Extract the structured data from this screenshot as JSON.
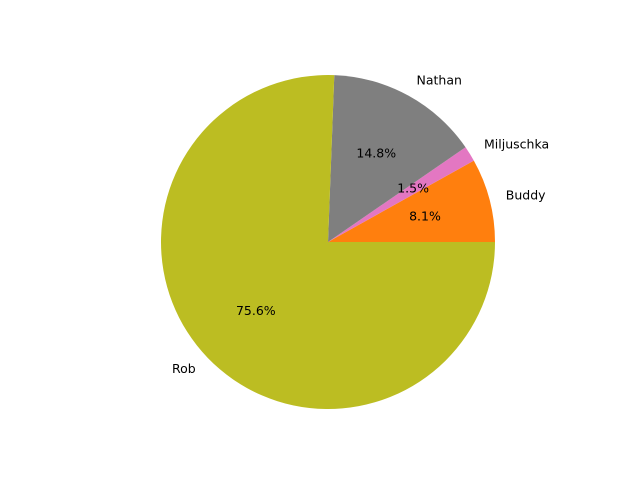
{
  "chart_data": {
    "type": "pie",
    "categories": [
      "Buddy",
      "Miljuschka",
      "Nathan",
      "Rob"
    ],
    "values": [
      8.1,
      1.5,
      14.8,
      75.6
    ],
    "percent_labels": [
      "8.1%",
      "1.5%",
      "14.8%",
      "75.6%"
    ],
    "colors": [
      "#ff7f0e",
      "#e377c2",
      "#7f7f7f",
      "#bcbd22"
    ],
    "start_angle_deg": 0,
    "direction": "counterclockwise",
    "title": "",
    "legend": "none"
  }
}
